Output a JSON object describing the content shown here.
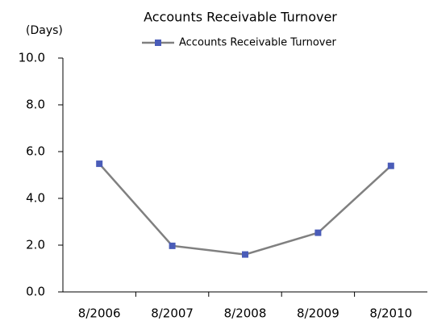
{
  "chart_data": {
    "type": "line",
    "title": "Accounts Receivable Turnover",
    "y_label": "(Days)",
    "categories": [
      "8/2006",
      "8/2007",
      "8/2008",
      "8/2009",
      "8/2010"
    ],
    "series": [
      {
        "name": "Accounts Receivable Turnover",
        "color": "#808080",
        "marker_color": "#4a5cb8",
        "values": [
          5.48,
          1.97,
          1.6,
          2.53,
          5.39
        ]
      }
    ],
    "ylim": [
      0,
      10
    ],
    "yticks": [
      {
        "value": 0,
        "label": "0.0"
      },
      {
        "value": 2,
        "label": "2.0"
      },
      {
        "value": 4,
        "label": "4.0"
      },
      {
        "value": 6,
        "label": "6.0"
      },
      {
        "value": 8,
        "label": "8.0"
      },
      {
        "value": 10,
        "label": "10.0"
      }
    ],
    "grid": false,
    "legend": "top"
  }
}
